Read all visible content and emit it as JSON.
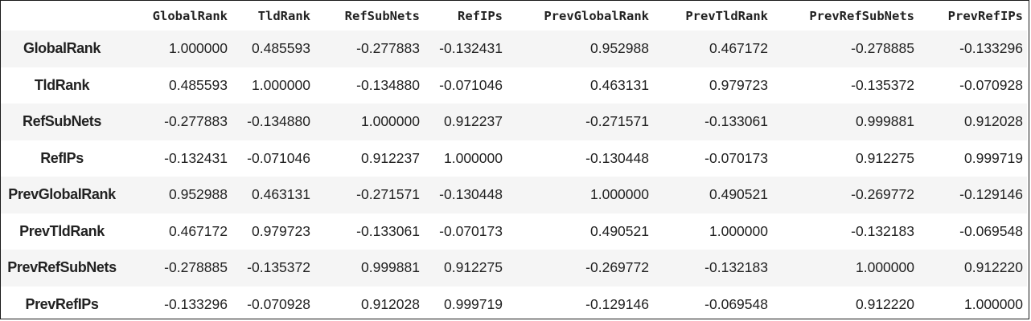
{
  "table": {
    "index_header": "",
    "columns": [
      "GlobalRank",
      "TldRank",
      "RefSubNets",
      "RefIPs",
      "PrevGlobalRank",
      "PrevTldRank",
      "PrevRefSubNets",
      "PrevRefIPs"
    ],
    "rows": [
      {
        "label": "GlobalRank",
        "values": [
          "1.000000",
          "0.485593",
          "-0.277883",
          "-0.132431",
          "0.952988",
          "0.467172",
          "-0.278885",
          "-0.133296"
        ]
      },
      {
        "label": "TldRank",
        "values": [
          "0.485593",
          "1.000000",
          "-0.134880",
          "-0.071046",
          "0.463131",
          "0.979723",
          "-0.135372",
          "-0.070928"
        ]
      },
      {
        "label": "RefSubNets",
        "values": [
          "-0.277883",
          "-0.134880",
          "1.000000",
          "0.912237",
          "-0.271571",
          "-0.133061",
          "0.999881",
          "0.912028"
        ]
      },
      {
        "label": "RefIPs",
        "values": [
          "-0.132431",
          "-0.071046",
          "0.912237",
          "1.000000",
          "-0.130448",
          "-0.070173",
          "0.912275",
          "0.999719"
        ]
      },
      {
        "label": "PrevGlobalRank",
        "values": [
          "0.952988",
          "0.463131",
          "-0.271571",
          "-0.130448",
          "1.000000",
          "0.490521",
          "-0.269772",
          "-0.129146"
        ]
      },
      {
        "label": "PrevTldRank",
        "values": [
          "0.467172",
          "0.979723",
          "-0.133061",
          "-0.070173",
          "0.490521",
          "1.000000",
          "-0.132183",
          "-0.069548"
        ]
      },
      {
        "label": "PrevRefSubNets",
        "values": [
          "-0.278885",
          "-0.135372",
          "0.999881",
          "0.912275",
          "-0.269772",
          "-0.132183",
          "1.000000",
          "0.912220"
        ]
      },
      {
        "label": "PrevRefIPs",
        "values": [
          "-0.133296",
          "-0.070928",
          "0.912028",
          "0.999719",
          "-0.129146",
          "-0.069548",
          "0.912220",
          "1.000000"
        ]
      }
    ]
  },
  "colors": {
    "text": "#222222",
    "stripe": "#f5f5f5",
    "background": "#ffffff",
    "border": "#1a1a1a"
  }
}
